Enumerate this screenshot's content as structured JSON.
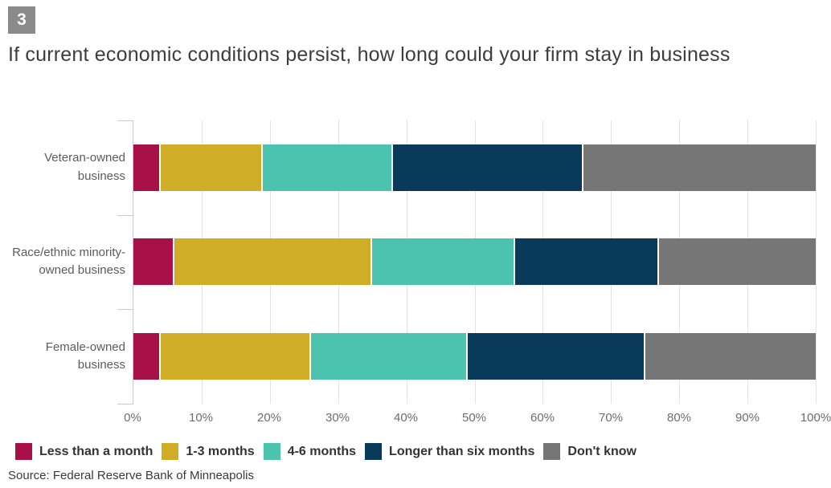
{
  "header": {
    "figure_number": "3",
    "title": "If current economic conditions persist, how long could your firm stay in business"
  },
  "chart_data": {
    "type": "bar",
    "orientation": "horizontal",
    "stacked": true,
    "title": "If current economic conditions persist, how long could your firm stay in business",
    "categories": [
      "Veteran-owned business",
      "Race/ethnic minority-owned business",
      "Female-owned business"
    ],
    "category_label_lines": [
      [
        "Veteran-owned",
        "business"
      ],
      [
        "Race/ethnic minority-",
        "owned business"
      ],
      [
        "Female-owned",
        "business"
      ]
    ],
    "series": [
      {
        "name": "Less than a month",
        "color": "#a81147",
        "values": [
          4,
          6,
          4
        ]
      },
      {
        "name": "1-3 months",
        "color": "#cfad26",
        "values": [
          15,
          29,
          22
        ]
      },
      {
        "name": "4-6 months",
        "color": "#4bc3ae",
        "values": [
          19,
          21,
          23
        ]
      },
      {
        "name": "Longer than six months",
        "color": "#093a59",
        "values": [
          28,
          21,
          26
        ]
      },
      {
        "name": "Don't know",
        "color": "#767676",
        "values": [
          34,
          23,
          25
        ]
      }
    ],
    "x_ticks": [
      "0%",
      "10%",
      "20%",
      "30%",
      "40%",
      "50%",
      "60%",
      "70%",
      "80%",
      "90%",
      "100%"
    ],
    "xlim": [
      0,
      100
    ],
    "unit": "percent",
    "grid": true,
    "legend_position": "bottom",
    "colors": {
      "grid": "#e3e3e3",
      "axis": "#c9c9c9",
      "badge_background": "#8a8a8a"
    }
  },
  "source": "Source: Federal Reserve Bank of Minneapolis"
}
